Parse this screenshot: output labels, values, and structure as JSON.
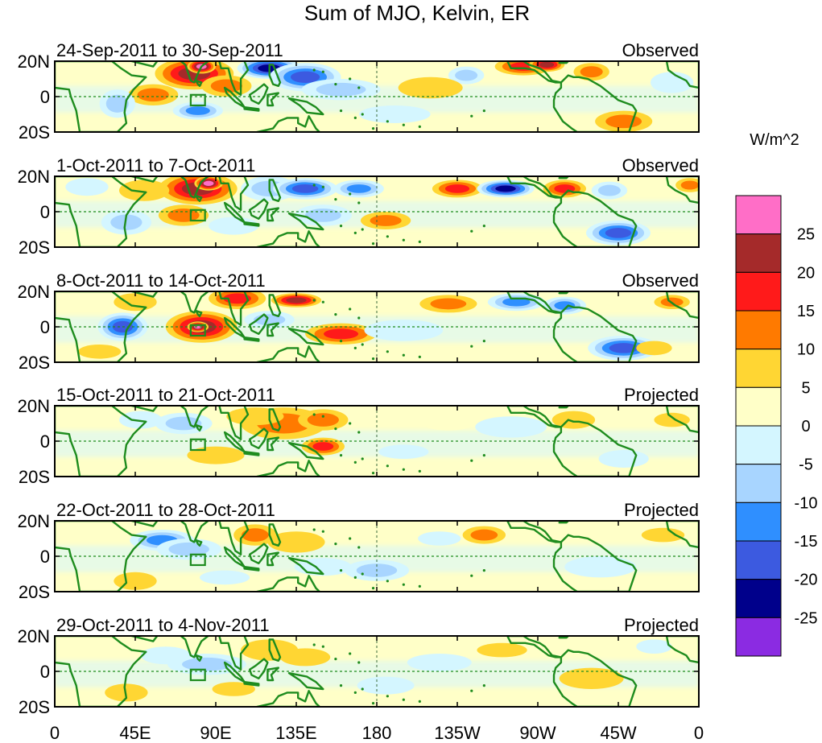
{
  "chart_data": {
    "type": "heatmap",
    "title": "Sum of MJO, Kelvin, ER",
    "units_label": "W/m^2",
    "lon_ticks": [
      "0",
      "45E",
      "90E",
      "135E",
      "180",
      "135W",
      "90W",
      "45W",
      "0"
    ],
    "lat_ticks": [
      "20N",
      "0",
      "20S"
    ],
    "lon_range": [
      0,
      360
    ],
    "lat_range": [
      -20,
      20
    ],
    "colorbar": {
      "levels": [
        "25",
        "20",
        "15",
        "10",
        "5",
        "0",
        "-5",
        "-10",
        "-15",
        "-20",
        "-25"
      ],
      "colors": [
        "#ff6ec7",
        "#a52a2a",
        "#ff1a1a",
        "#ff7a00",
        "#ffd633",
        "#ffffc8",
        "#d4f6ff",
        "#a8d5ff",
        "#2f8fff",
        "#3c5ae0",
        "#00008b",
        "#8b2be2"
      ]
    },
    "panels": [
      {
        "dates": "24-Sep-2011 to 30-Sep-2011",
        "status": "Observed",
        "anomalies": [
          {
            "lon": 78,
            "lat": 13,
            "value": 22,
            "rx": 22,
            "ry": 9
          },
          {
            "lon": 82,
            "lat": 17,
            "value": 28,
            "rx": 8,
            "ry": 4
          },
          {
            "lon": 55,
            "lat": 1,
            "value": 14,
            "rx": 14,
            "ry": 6
          },
          {
            "lon": 96,
            "lat": 6,
            "value": 12,
            "rx": 14,
            "ry": 6
          },
          {
            "lon": 120,
            "lat": 16,
            "value": -28,
            "rx": 18,
            "ry": 6
          },
          {
            "lon": 140,
            "lat": 11,
            "value": -24,
            "rx": 20,
            "ry": 8
          },
          {
            "lon": 160,
            "lat": 4,
            "value": -10,
            "rx": 22,
            "ry": 6
          },
          {
            "lon": 80,
            "lat": -8,
            "value": -18,
            "rx": 14,
            "ry": 5
          },
          {
            "lon": 35,
            "lat": -4,
            "value": -12,
            "rx": 10,
            "ry": 8
          },
          {
            "lon": 262,
            "lat": 17,
            "value": 16,
            "rx": 16,
            "ry": 5
          },
          {
            "lon": 275,
            "lat": 18,
            "value": 24,
            "rx": 10,
            "ry": 4
          },
          {
            "lon": 300,
            "lat": 14,
            "value": 10,
            "rx": 10,
            "ry": 5
          },
          {
            "lon": 318,
            "lat": -14,
            "value": 14,
            "rx": 16,
            "ry": 6
          },
          {
            "lon": 230,
            "lat": 12,
            "value": -10,
            "rx": 10,
            "ry": 5
          },
          {
            "lon": 210,
            "lat": 5,
            "value": 6,
            "rx": 18,
            "ry": 6
          },
          {
            "lon": 345,
            "lat": 8,
            "value": -6,
            "rx": 12,
            "ry": 6
          },
          {
            "lon": 190,
            "lat": -10,
            "value": -6,
            "rx": 20,
            "ry": 5
          }
        ]
      },
      {
        "dates": "1-Oct-2011 to 7-Oct-2011",
        "status": "Observed",
        "anomalies": [
          {
            "lon": 80,
            "lat": 13,
            "value": 24,
            "rx": 22,
            "ry": 9
          },
          {
            "lon": 86,
            "lat": 16,
            "value": 28,
            "rx": 8,
            "ry": 4
          },
          {
            "lon": 72,
            "lat": -2,
            "value": 14,
            "rx": 14,
            "ry": 6
          },
          {
            "lon": 120,
            "lat": 13,
            "value": -14,
            "rx": 16,
            "ry": 7
          },
          {
            "lon": 140,
            "lat": 13,
            "value": -22,
            "rx": 18,
            "ry": 6
          },
          {
            "lon": 170,
            "lat": 13,
            "value": -16,
            "rx": 14,
            "ry": 5
          },
          {
            "lon": 225,
            "lat": 13,
            "value": 18,
            "rx": 14,
            "ry": 5
          },
          {
            "lon": 252,
            "lat": 13,
            "value": -26,
            "rx": 16,
            "ry": 5
          },
          {
            "lon": 285,
            "lat": 13,
            "value": 16,
            "rx": 12,
            "ry": 5
          },
          {
            "lon": 310,
            "lat": 12,
            "value": -10,
            "rx": 10,
            "ry": 5
          },
          {
            "lon": 315,
            "lat": -12,
            "value": -20,
            "rx": 18,
            "ry": 7
          },
          {
            "lon": 40,
            "lat": -6,
            "value": -14,
            "rx": 14,
            "ry": 7
          },
          {
            "lon": 50,
            "lat": 12,
            "value": 8,
            "rx": 14,
            "ry": 6
          },
          {
            "lon": 150,
            "lat": -2,
            "value": -12,
            "rx": 16,
            "ry": 6
          },
          {
            "lon": 185,
            "lat": -5,
            "value": 14,
            "rx": 14,
            "ry": 5
          },
          {
            "lon": 100,
            "lat": -8,
            "value": -8,
            "rx": 14,
            "ry": 5
          },
          {
            "lon": 18,
            "lat": 14,
            "value": -6,
            "rx": 12,
            "ry": 5
          },
          {
            "lon": 355,
            "lat": 15,
            "value": 10,
            "rx": 8,
            "ry": 4
          }
        ]
      },
      {
        "dates": "8-Oct-2011 to 14-Oct-2011",
        "status": "Observed",
        "anomalies": [
          {
            "lon": 82,
            "lat": 0,
            "value": 24,
            "rx": 20,
            "ry": 9
          },
          {
            "lon": 80,
            "lat": 0,
            "value": 28,
            "rx": 6,
            "ry": 3
          },
          {
            "lon": 102,
            "lat": 16,
            "value": 16,
            "rx": 16,
            "ry": 6
          },
          {
            "lon": 135,
            "lat": 15,
            "value": 24,
            "rx": 14,
            "ry": 4
          },
          {
            "lon": 160,
            "lat": -4,
            "value": 16,
            "rx": 20,
            "ry": 6
          },
          {
            "lon": 120,
            "lat": 4,
            "value": -14,
            "rx": 14,
            "ry": 5
          },
          {
            "lon": 38,
            "lat": 0,
            "value": -22,
            "rx": 14,
            "ry": 8
          },
          {
            "lon": 45,
            "lat": 14,
            "value": 8,
            "rx": 12,
            "ry": 5
          },
          {
            "lon": 220,
            "lat": 13,
            "value": 14,
            "rx": 16,
            "ry": 5
          },
          {
            "lon": 258,
            "lat": 14,
            "value": -18,
            "rx": 16,
            "ry": 5
          },
          {
            "lon": 285,
            "lat": 12,
            "value": -16,
            "rx": 12,
            "ry": 5
          },
          {
            "lon": 318,
            "lat": -12,
            "value": -22,
            "rx": 20,
            "ry": 7
          },
          {
            "lon": 345,
            "lat": 14,
            "value": 14,
            "rx": 10,
            "ry": 4
          },
          {
            "lon": 335,
            "lat": -12,
            "value": 8,
            "rx": 10,
            "ry": 4
          },
          {
            "lon": 195,
            "lat": -2,
            "value": -6,
            "rx": 22,
            "ry": 6
          },
          {
            "lon": 25,
            "lat": -14,
            "value": 6,
            "rx": 12,
            "ry": 4
          }
        ]
      },
      {
        "dates": "15-Oct-2011 to 21-Oct-2011",
        "status": "Projected",
        "anomalies": [
          {
            "lon": 128,
            "lat": 10,
            "value": 14,
            "rx": 24,
            "ry": 9
          },
          {
            "lon": 150,
            "lat": 12,
            "value": 12,
            "rx": 14,
            "ry": 6
          },
          {
            "lon": 150,
            "lat": -3,
            "value": 16,
            "rx": 12,
            "ry": 5
          },
          {
            "lon": 112,
            "lat": 14,
            "value": 8,
            "rx": 16,
            "ry": 5
          },
          {
            "lon": 72,
            "lat": 10,
            "value": -12,
            "rx": 16,
            "ry": 6
          },
          {
            "lon": 48,
            "lat": 12,
            "value": -6,
            "rx": 12,
            "ry": 5
          },
          {
            "lon": 195,
            "lat": -6,
            "value": -8,
            "rx": 14,
            "ry": 4
          },
          {
            "lon": 255,
            "lat": 8,
            "value": -6,
            "rx": 20,
            "ry": 6
          },
          {
            "lon": 290,
            "lat": 12,
            "value": 6,
            "rx": 12,
            "ry": 5
          },
          {
            "lon": 318,
            "lat": -10,
            "value": -6,
            "rx": 14,
            "ry": 5
          },
          {
            "lon": 345,
            "lat": 12,
            "value": 6,
            "rx": 10,
            "ry": 4
          },
          {
            "lon": 90,
            "lat": -8,
            "value": 6,
            "rx": 16,
            "ry": 5
          },
          {
            "lon": 220,
            "lat": 10,
            "value": 4,
            "rx": 14,
            "ry": 4
          }
        ]
      },
      {
        "dates": "22-Oct-2011 to 28-Oct-2011",
        "status": "Projected",
        "anomalies": [
          {
            "lon": 60,
            "lat": 9,
            "value": -18,
            "rx": 18,
            "ry": 6
          },
          {
            "lon": 75,
            "lat": 4,
            "value": -12,
            "rx": 18,
            "ry": 6
          },
          {
            "lon": 112,
            "lat": 12,
            "value": 14,
            "rx": 12,
            "ry": 6
          },
          {
            "lon": 135,
            "lat": 8,
            "value": 8,
            "rx": 16,
            "ry": 6
          },
          {
            "lon": 180,
            "lat": -8,
            "value": -14,
            "rx": 18,
            "ry": 6
          },
          {
            "lon": 150,
            "lat": -6,
            "value": -6,
            "rx": 16,
            "ry": 5
          },
          {
            "lon": 240,
            "lat": 12,
            "value": 14,
            "rx": 12,
            "ry": 5
          },
          {
            "lon": 215,
            "lat": 10,
            "value": -6,
            "rx": 12,
            "ry": 4
          },
          {
            "lon": 45,
            "lat": -14,
            "value": 8,
            "rx": 12,
            "ry": 5
          },
          {
            "lon": 305,
            "lat": -6,
            "value": -5,
            "rx": 20,
            "ry": 6
          },
          {
            "lon": 340,
            "lat": 12,
            "value": 5,
            "rx": 12,
            "ry": 4
          },
          {
            "lon": 95,
            "lat": -12,
            "value": -5,
            "rx": 14,
            "ry": 4
          }
        ]
      },
      {
        "dates": "29-Oct-2011 to 4-Nov-2011",
        "status": "Projected",
        "anomalies": [
          {
            "lon": 85,
            "lat": 4,
            "value": -10,
            "rx": 22,
            "ry": 6
          },
          {
            "lon": 62,
            "lat": 9,
            "value": -6,
            "rx": 14,
            "ry": 5
          },
          {
            "lon": 120,
            "lat": 12,
            "value": 8,
            "rx": 16,
            "ry": 6
          },
          {
            "lon": 140,
            "lat": 8,
            "value": 5,
            "rx": 14,
            "ry": 5
          },
          {
            "lon": 185,
            "lat": -8,
            "value": -8,
            "rx": 16,
            "ry": 5
          },
          {
            "lon": 250,
            "lat": 12,
            "value": 6,
            "rx": 14,
            "ry": 4
          },
          {
            "lon": 40,
            "lat": -12,
            "value": 6,
            "rx": 12,
            "ry": 5
          },
          {
            "lon": 300,
            "lat": -4,
            "value": 5,
            "rx": 18,
            "ry": 6
          },
          {
            "lon": 215,
            "lat": 5,
            "value": -4,
            "rx": 18,
            "ry": 5
          },
          {
            "lon": 335,
            "lat": 14,
            "value": -5,
            "rx": 10,
            "ry": 4
          },
          {
            "lon": 100,
            "lat": -10,
            "value": 5,
            "rx": 12,
            "ry": 4
          }
        ]
      }
    ]
  }
}
